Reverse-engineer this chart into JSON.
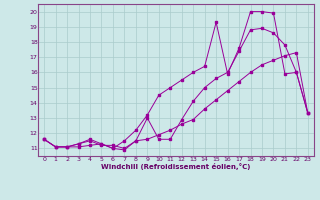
{
  "xlabel": "Windchill (Refroidissement éolien,°C)",
  "background_color": "#cde8e8",
  "line_color": "#990099",
  "grid_color": "#aacccc",
  "xlim": [
    -0.5,
    23.5
  ],
  "ylim": [
    10.5,
    20.5
  ],
  "xticks": [
    0,
    1,
    2,
    3,
    4,
    5,
    6,
    7,
    8,
    9,
    10,
    11,
    12,
    13,
    14,
    15,
    16,
    17,
    18,
    19,
    20,
    21,
    22,
    23
  ],
  "yticks": [
    11,
    12,
    13,
    14,
    15,
    16,
    17,
    18,
    19,
    20
  ],
  "line1_x": [
    0,
    1,
    2,
    3,
    4,
    5,
    6,
    7,
    8,
    9,
    10,
    11,
    12,
    13,
    14,
    15,
    16,
    17,
    18,
    19,
    20,
    21,
    22,
    23
  ],
  "line1_y": [
    11.6,
    11.1,
    11.1,
    11.1,
    11.2,
    11.3,
    11.0,
    10.9,
    11.5,
    13.0,
    11.6,
    11.6,
    12.9,
    14.1,
    15.0,
    15.6,
    16.0,
    17.4,
    18.8,
    18.9,
    18.6,
    17.8,
    16.0,
    13.3
  ],
  "line2_x": [
    0,
    1,
    2,
    3,
    4,
    5,
    6,
    7,
    8,
    9,
    10,
    11,
    12,
    13,
    14,
    15,
    16,
    17,
    18,
    19,
    20,
    21,
    22,
    23
  ],
  "line2_y": [
    11.6,
    11.1,
    11.1,
    11.3,
    11.5,
    11.2,
    11.2,
    11.0,
    11.5,
    11.6,
    11.9,
    12.2,
    12.6,
    12.9,
    13.6,
    14.2,
    14.8,
    15.4,
    16.0,
    16.5,
    16.8,
    17.1,
    17.3,
    13.3
  ],
  "line3_x": [
    0,
    1,
    2,
    3,
    4,
    5,
    6,
    7,
    8,
    9,
    10,
    11,
    12,
    13,
    14,
    15,
    16,
    17,
    18,
    19,
    20,
    21,
    22,
    23
  ],
  "line3_y": [
    11.6,
    11.1,
    11.1,
    11.3,
    11.6,
    11.3,
    11.0,
    11.5,
    12.2,
    13.2,
    14.5,
    15.0,
    15.5,
    16.0,
    16.4,
    19.3,
    15.9,
    17.6,
    20.0,
    20.0,
    19.9,
    15.9,
    16.0,
    13.3
  ]
}
